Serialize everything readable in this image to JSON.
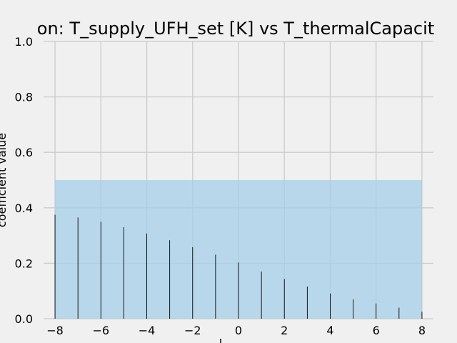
{
  "chart_data": {
    "type": "bar",
    "title": "on: T_supply_UFH_set [K] vs T_thermalCapacit",
    "xlabel": "l",
    "ylabel": "coefficient value",
    "x": [
      -8,
      -7,
      -6,
      -5,
      -4,
      -3,
      -2,
      -1,
      0,
      1,
      2,
      3,
      4,
      5,
      6,
      7,
      8
    ],
    "values": [
      0.375,
      0.365,
      0.35,
      0.33,
      0.307,
      0.283,
      0.258,
      0.231,
      0.203,
      0.17,
      0.143,
      0.116,
      0.091,
      0.07,
      0.055,
      0.04,
      0.025
    ],
    "band": {
      "x": [
        -8,
        8
      ],
      "y": [
        0,
        0.5
      ]
    },
    "xlim": [
      -8.5,
      8.5
    ],
    "ylim": [
      0,
      1
    ],
    "xticks": [
      "−8",
      "−6",
      "−4",
      "−2",
      "0",
      "2",
      "4",
      "6",
      "8"
    ],
    "xtick_values": [
      -8,
      -6,
      -4,
      -2,
      0,
      2,
      4,
      6,
      8
    ],
    "yticks": [
      "0.0",
      "0.2",
      "0.4",
      "0.6",
      "0.8",
      "1.0"
    ],
    "ytick_values": [
      0,
      0.2,
      0.4,
      0.6,
      0.8,
      1.0
    ],
    "grid": true,
    "colors": {
      "band": "#a6cfe8",
      "bar": "#000000",
      "grid": "#cbcbcb",
      "background": "#f0f0f0"
    }
  }
}
